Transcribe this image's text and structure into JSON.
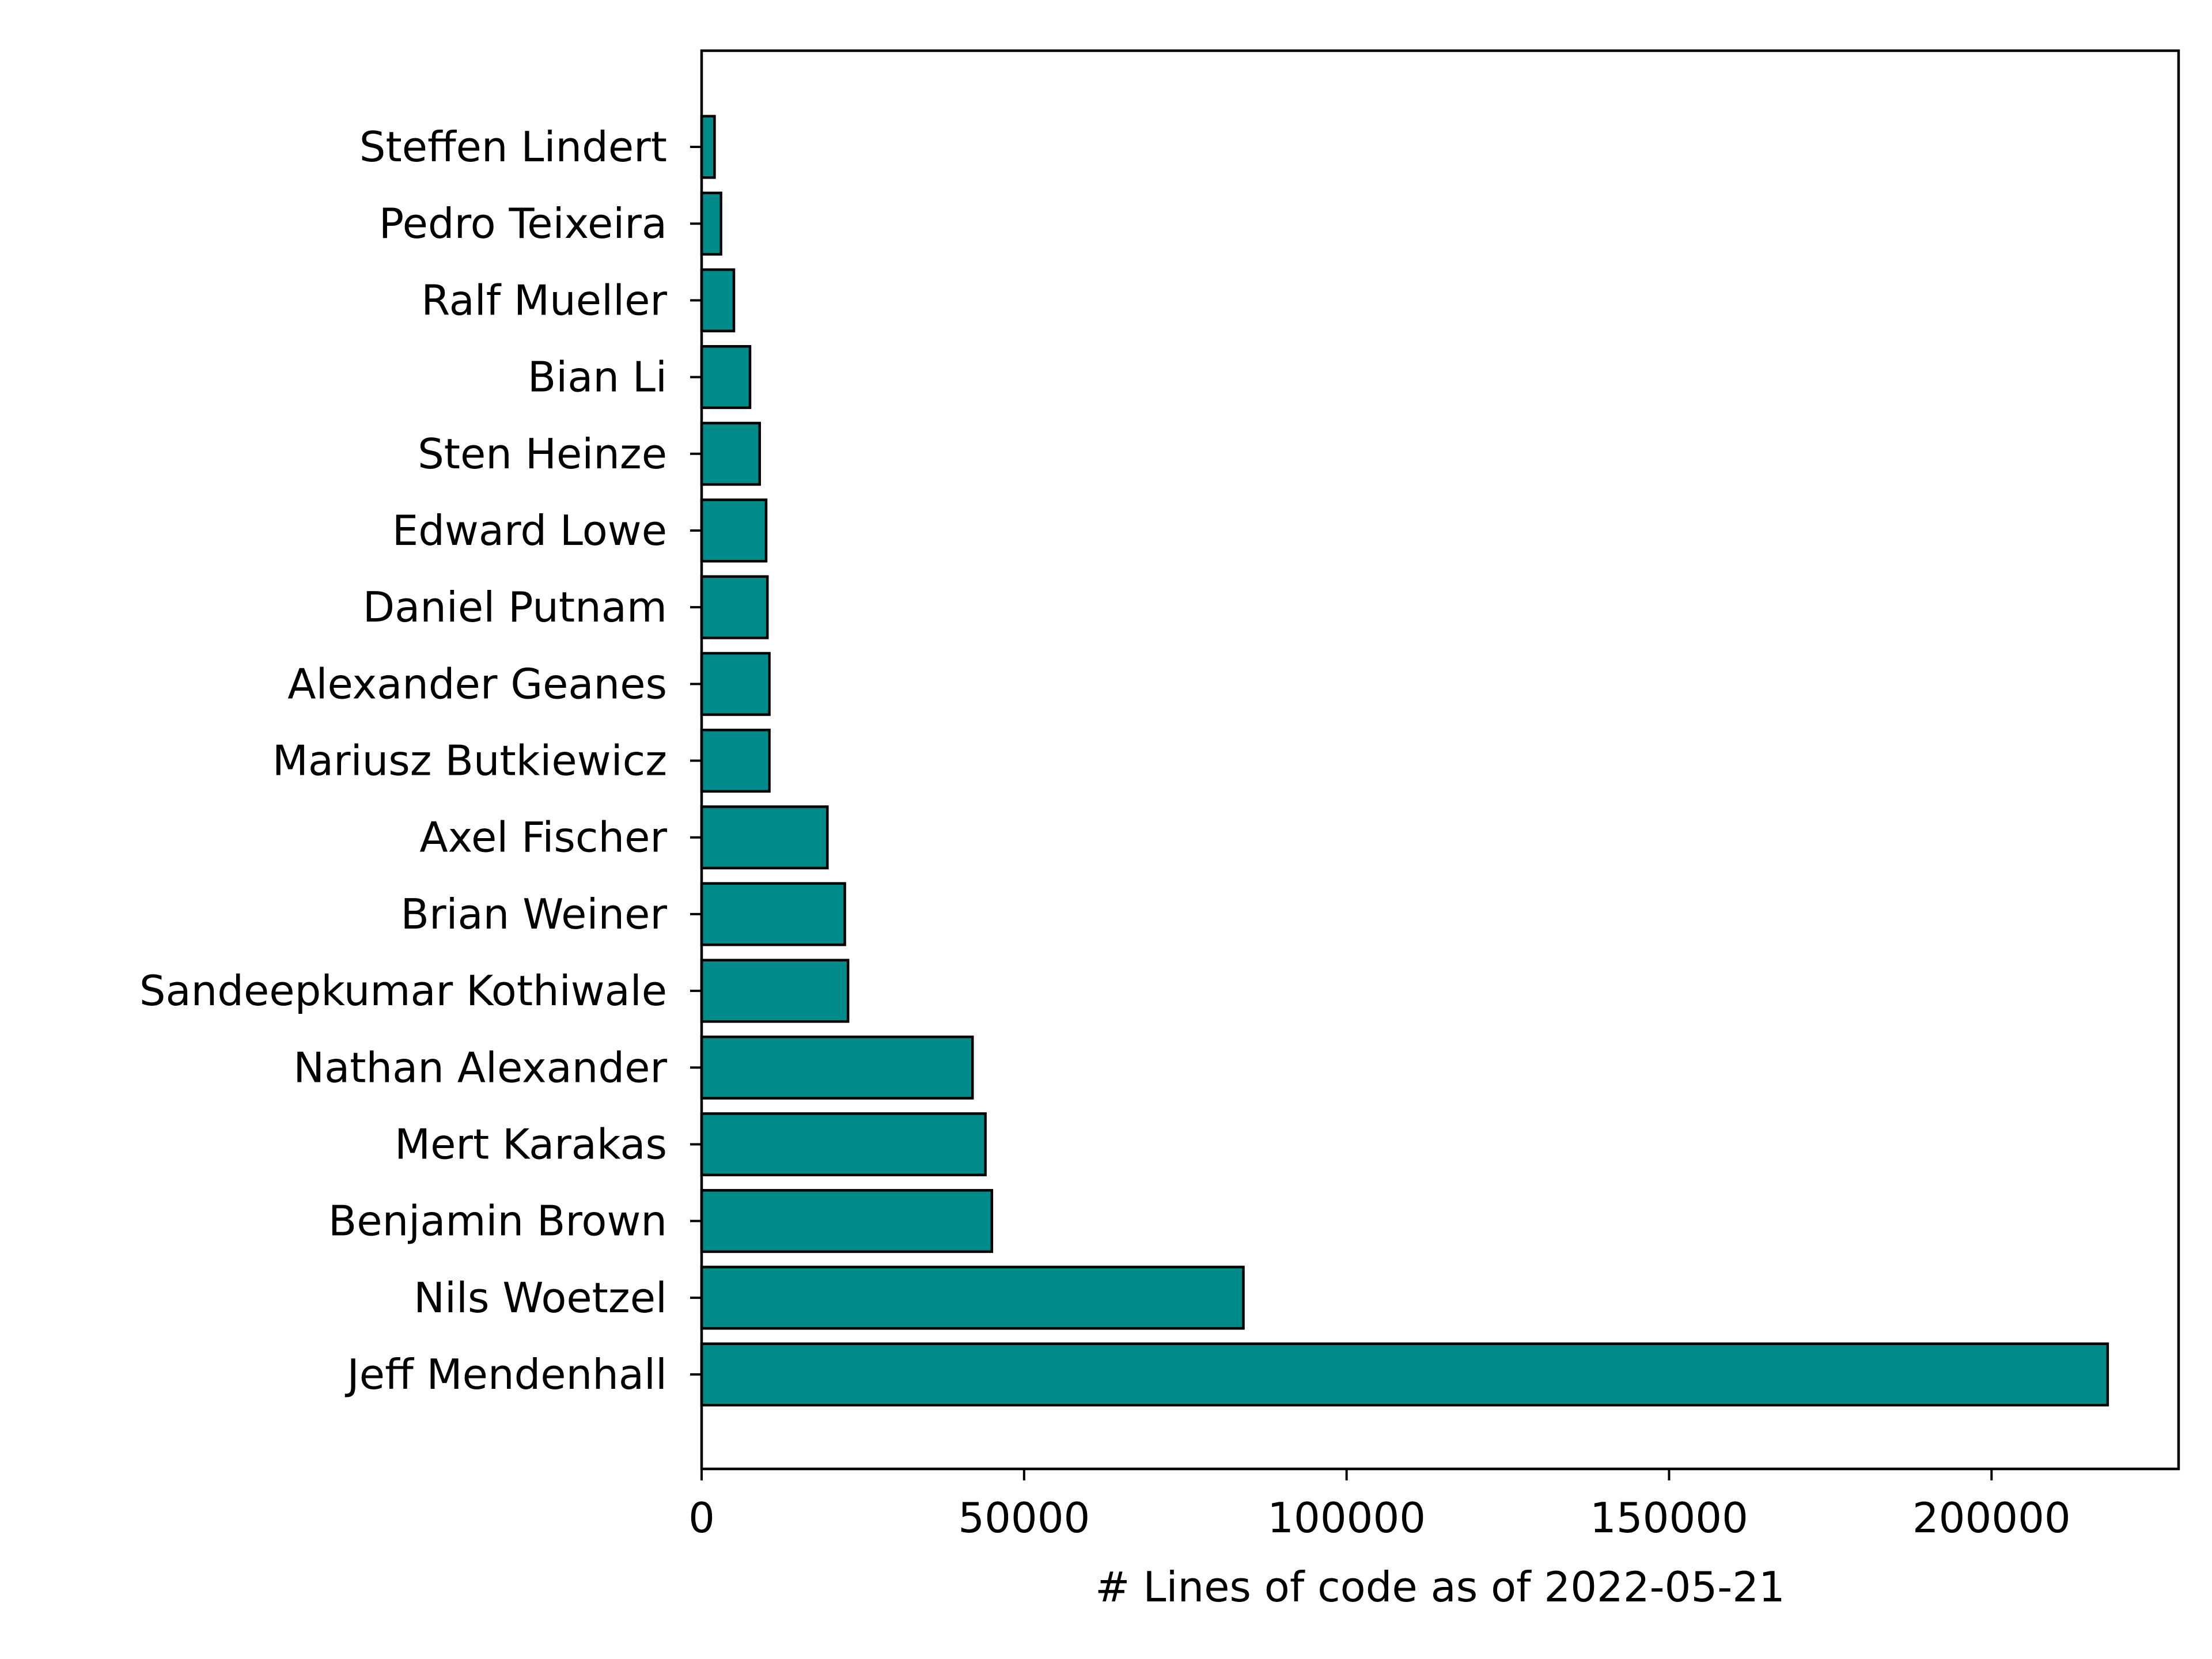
{
  "colors": {
    "bar_fill": "#008b8b",
    "bar_edge": "#000000",
    "axis": "#000000",
    "background": "#ffffff"
  },
  "chart_data": {
    "type": "bar",
    "orientation": "horizontal",
    "categories": [
      "Jeff Mendenhall",
      "Nils Woetzel",
      "Benjamin Brown",
      "Mert Karakas",
      "Nathan Alexander",
      "Sandeepkumar Kothiwale",
      "Brian Weiner",
      "Axel Fischer",
      "Mariusz Butkiewicz",
      "Alexander Geanes",
      "Daniel Putnam",
      "Edward Lowe",
      "Sten Heinze",
      "Bian Li",
      "Ralf Mueller",
      "Pedro Teixeira",
      "Steffen Lindert"
    ],
    "values": [
      218000,
      84000,
      45000,
      44000,
      42000,
      22700,
      22200,
      19500,
      10500,
      10500,
      10200,
      10000,
      9000,
      7500,
      5000,
      3000,
      2000
    ],
    "title": "",
    "xlabel": "# Lines of code as of 2022-05-21",
    "ylabel": "",
    "xlim": [
      0,
      229000
    ],
    "xticks": [
      0,
      50000,
      100000,
      150000,
      200000
    ],
    "xtick_labels": [
      "0",
      "50000",
      "100000",
      "150000",
      "200000"
    ],
    "grid": false,
    "legend": "none"
  }
}
